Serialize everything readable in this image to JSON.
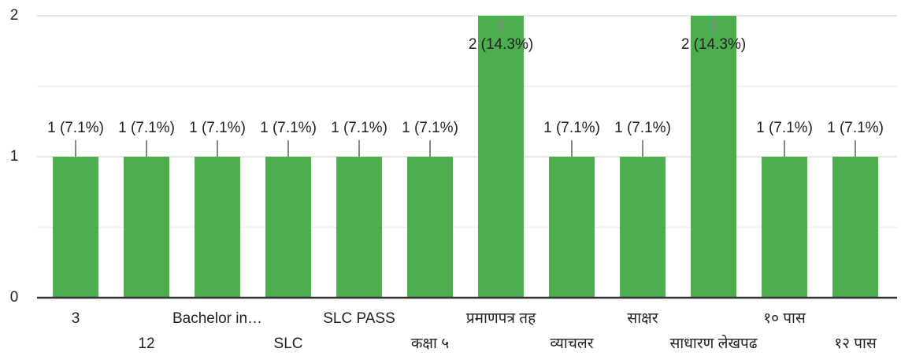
{
  "chart_data": {
    "type": "bar",
    "categories": [
      "3",
      "12",
      "Bachelor in…",
      "SLC",
      "SLC PASS",
      "कक्षा ५",
      "प्रमाणपत्र तह",
      "व्याचलर",
      "साक्षर",
      "साधारण लेखपढ",
      "१० पास",
      "१२ पास"
    ],
    "values": [
      1,
      1,
      1,
      1,
      1,
      1,
      2,
      1,
      1,
      2,
      1,
      1
    ],
    "value_labels": [
      "1 (7.1%)",
      "1 (7.1%)",
      "1 (7.1%)",
      "1 (7.1%)",
      "1 (7.1%)",
      "1 (7.1%)",
      "2 (14.3%)",
      "1 (7.1%)",
      "1 (7.1%)",
      "2 (14.3%)",
      "1 (7.1%)",
      "1 (7.1%)"
    ],
    "color": "#4cae4f",
    "ylim": [
      0,
      2
    ],
    "yticks": [
      0,
      1,
      2
    ],
    "minor_gridlines": [
      0.5,
      1.5
    ],
    "grid": true
  }
}
